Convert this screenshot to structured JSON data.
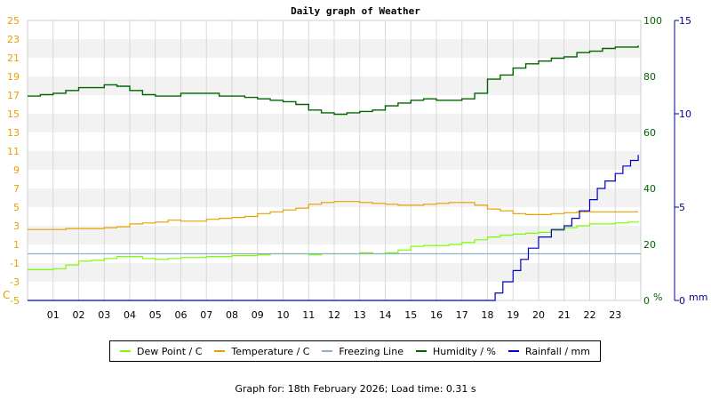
{
  "chart_data": {
    "type": "line",
    "title": "Daily graph of Weather",
    "footer": "Graph for: 18th February 2026; Load time: 0.31 s",
    "x_ticks": [
      "01",
      "02",
      "03",
      "04",
      "05",
      "06",
      "07",
      "08",
      "09",
      "10",
      "11",
      "12",
      "13",
      "14",
      "15",
      "16",
      "17",
      "18",
      "19",
      "20",
      "21",
      "22",
      "23"
    ],
    "xlim": [
      0,
      24
    ],
    "axes": {
      "left": {
        "label": "C",
        "ticks": [
          "25",
          "23",
          "21",
          "19",
          "17",
          "15",
          "13",
          "11",
          "9",
          "7",
          "5",
          "3",
          "1",
          "-1",
          "-3",
          "-5"
        ],
        "ylim": [
          -5,
          25
        ],
        "color": "#e8a000"
      },
      "right1": {
        "label": "%",
        "ticks": [
          "100",
          "80",
          "60",
          "40",
          "20",
          "0"
        ],
        "ylim": [
          0,
          100
        ],
        "color": "#006400"
      },
      "right2": {
        "label": "mm",
        "ticks": [
          "15",
          "10",
          "5",
          "0"
        ],
        "ylim": [
          0,
          15
        ],
        "color": "#00008b"
      }
    },
    "grid": true,
    "legend_position": "bottom",
    "series": [
      {
        "name": "Dew Point / C",
        "color": "#7cfc00",
        "axis": "left",
        "x": [
          0,
          0.5,
          1,
          1.5,
          2,
          2.5,
          3,
          3.5,
          4,
          4.5,
          5,
          5.5,
          6,
          6.5,
          7,
          7.5,
          8,
          8.5,
          9,
          9.5,
          10,
          10.5,
          11,
          11.5,
          12,
          12.5,
          13,
          13.5,
          14,
          14.5,
          15,
          15.5,
          16,
          16.5,
          17,
          17.5,
          18,
          18.5,
          19,
          19.5,
          20,
          20.5,
          21,
          21.5,
          22,
          22.5,
          23,
          23.5,
          23.9
        ],
        "y": [
          -1.7,
          -1.7,
          -1.6,
          -1.2,
          -0.8,
          -0.7,
          -0.5,
          -0.3,
          -0.3,
          -0.5,
          -0.6,
          -0.5,
          -0.4,
          -0.4,
          -0.3,
          -0.3,
          -0.2,
          -0.2,
          -0.1,
          0.0,
          0.0,
          0.0,
          -0.1,
          0.0,
          0.0,
          0.0,
          0.1,
          0.0,
          0.1,
          0.4,
          0.8,
          0.9,
          0.9,
          1.0,
          1.2,
          1.5,
          1.8,
          2.0,
          2.1,
          2.2,
          2.3,
          2.5,
          2.8,
          3.0,
          3.2,
          3.2,
          3.3,
          3.4,
          3.5
        ]
      },
      {
        "name": "Temperature / C",
        "color": "#e8a000",
        "axis": "left",
        "x": [
          0,
          0.5,
          1,
          1.5,
          2,
          2.5,
          3,
          3.5,
          4,
          4.5,
          5,
          5.5,
          6,
          6.5,
          7,
          7.5,
          8,
          8.5,
          9,
          9.5,
          10,
          10.5,
          11,
          11.5,
          12,
          12.5,
          13,
          13.5,
          14,
          14.5,
          15,
          15.5,
          16,
          16.5,
          17,
          17.5,
          18,
          18.5,
          19,
          19.5,
          20,
          20.5,
          21,
          21.5,
          22,
          22.5,
          23,
          23.5,
          23.9
        ],
        "y": [
          2.6,
          2.6,
          2.6,
          2.7,
          2.7,
          2.7,
          2.8,
          2.9,
          3.2,
          3.3,
          3.4,
          3.6,
          3.5,
          3.5,
          3.7,
          3.8,
          3.9,
          4.0,
          4.3,
          4.5,
          4.7,
          4.9,
          5.3,
          5.5,
          5.6,
          5.6,
          5.5,
          5.4,
          5.3,
          5.2,
          5.2,
          5.3,
          5.4,
          5.5,
          5.5,
          5.2,
          4.8,
          4.6,
          4.3,
          4.2,
          4.2,
          4.3,
          4.4,
          4.5,
          4.5,
          4.5,
          4.5,
          4.5,
          4.5
        ]
      },
      {
        "name": "Freezing Line",
        "color": "#8fb0cc",
        "axis": "left",
        "x": [
          0,
          24
        ],
        "y": [
          0,
          0
        ]
      },
      {
        "name": "Humidity / %",
        "color": "#006400",
        "axis": "right1",
        "x": [
          0,
          0.5,
          1,
          1.5,
          2,
          2.5,
          3,
          3.5,
          4,
          4.5,
          5,
          5.5,
          6,
          6.5,
          7,
          7.5,
          8,
          8.5,
          9,
          9.5,
          10,
          10.5,
          11,
          11.5,
          12,
          12.5,
          13,
          13.5,
          14,
          14.5,
          15,
          15.5,
          16,
          16.5,
          17,
          17.5,
          18,
          18.5,
          19,
          19.5,
          20,
          20.5,
          21,
          21.5,
          22,
          22.5,
          23,
          23.5,
          23.9
        ],
        "y": [
          73,
          73.5,
          74,
          75,
          76,
          76,
          77,
          76.5,
          75,
          73.5,
          73,
          73,
          74,
          74,
          74,
          73,
          73,
          72.5,
          72,
          71.5,
          71,
          70,
          68,
          67,
          66.5,
          67,
          67.5,
          68,
          69.5,
          70.5,
          71.5,
          72,
          71.5,
          71.5,
          72,
          74,
          79,
          80.5,
          83,
          84.5,
          85.5,
          86.5,
          87,
          88.5,
          89,
          90,
          90.5,
          90.5,
          91
        ]
      },
      {
        "name": "Rainfall / mm",
        "color": "#0000cc",
        "axis": "right2",
        "x": [
          0,
          18,
          18.3,
          18.6,
          19,
          19.3,
          19.6,
          20,
          20.5,
          21,
          21.3,
          21.6,
          22,
          22.3,
          22.6,
          23,
          23.3,
          23.6,
          23.9
        ],
        "y": [
          0,
          0,
          0.4,
          1.0,
          1.6,
          2.2,
          2.8,
          3.4,
          3.8,
          4.0,
          4.4,
          4.8,
          5.4,
          6.0,
          6.4,
          6.8,
          7.2,
          7.5,
          7.8
        ]
      }
    ]
  }
}
